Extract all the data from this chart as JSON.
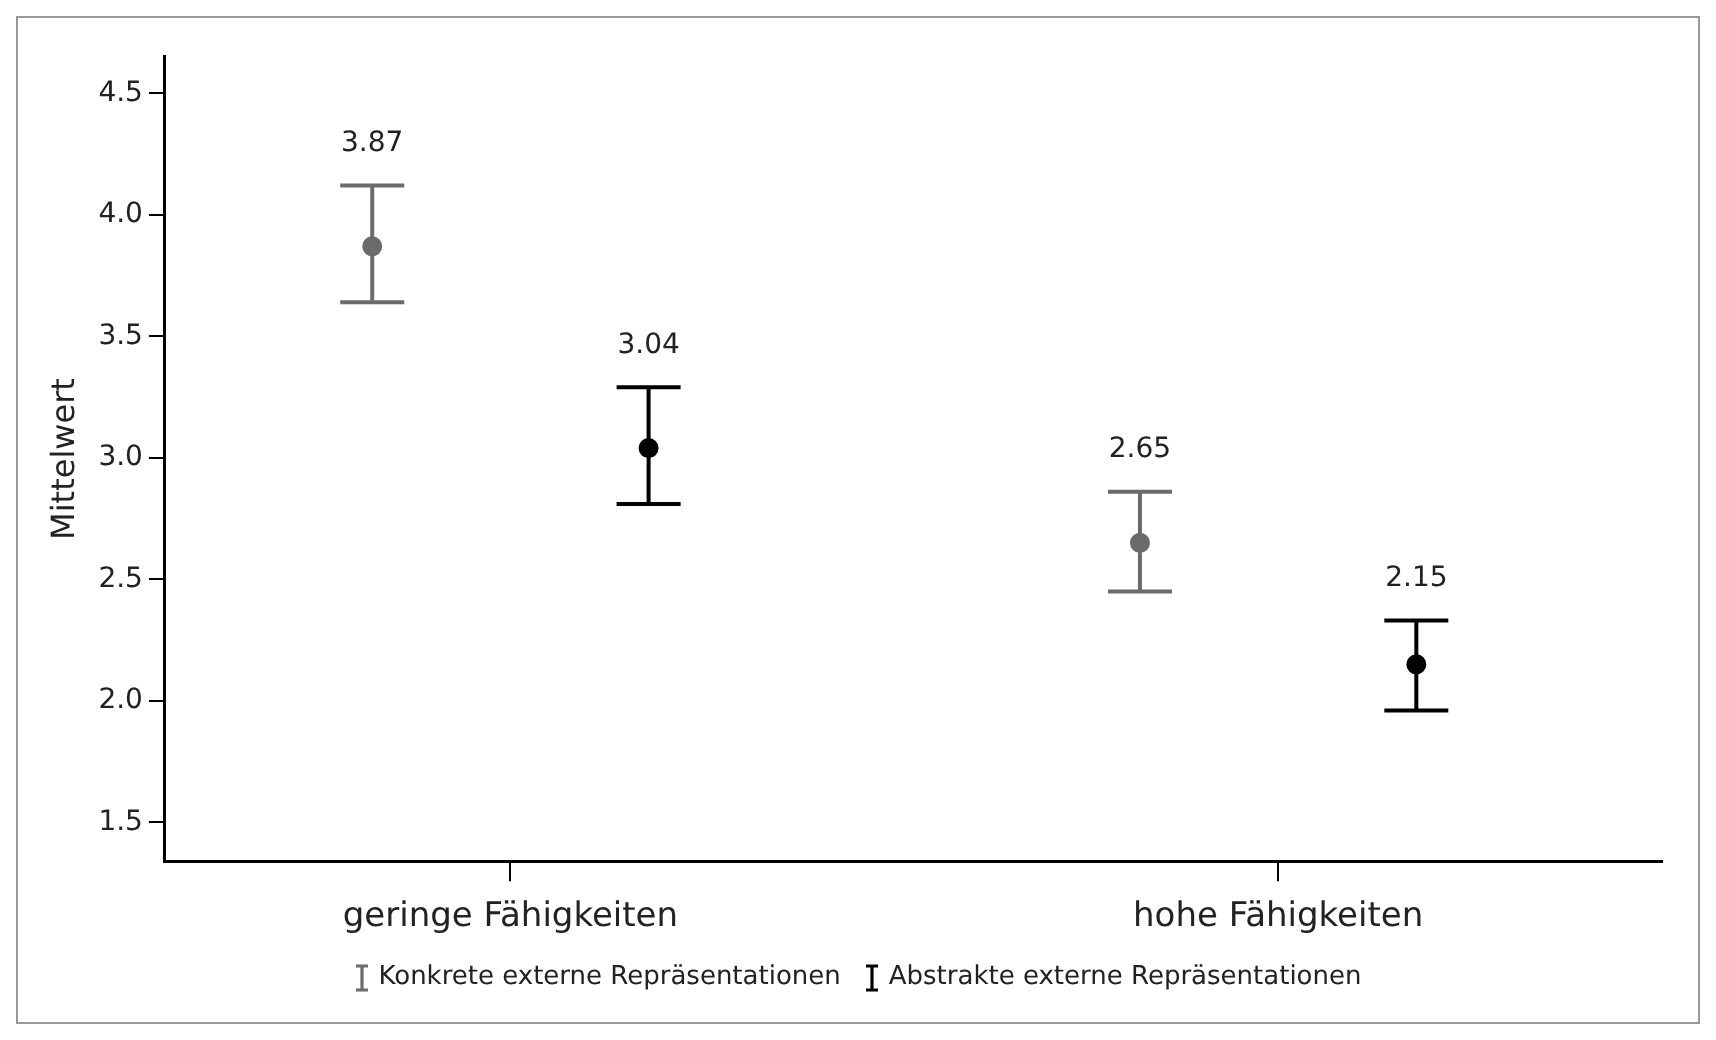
{
  "chart_data": {
    "type": "scatter",
    "ylabel": "Mittelwert",
    "categories": [
      "geringe Fähigkeiten",
      "hohe Fähigkeiten"
    ],
    "series": [
      {
        "name": "Konkrete externe Repräsentationen",
        "color": "#6b6b6b",
        "values": [
          3.87,
          2.65
        ],
        "errors": [
          [
            3.64,
            4.12
          ],
          [
            2.45,
            2.86
          ]
        ]
      },
      {
        "name": "Abstrakte externe Repräsentationen",
        "color": "#000000",
        "values": [
          3.04,
          2.15
        ],
        "errors": [
          [
            2.81,
            3.29
          ],
          [
            1.96,
            2.33
          ]
        ]
      }
    ],
    "ylim": [
      1.34,
      4.65
    ],
    "yticks": [
      1.5,
      {
        "value": 2,
        "label": "2.0"
      },
      2.5,
      {
        "value": 3,
        "label": "3.0"
      },
      3.5,
      {
        "value": 4,
        "label": "4.0"
      },
      4.5
    ],
    "grid": false,
    "legend": "bottom",
    "marker": "circle",
    "data_labels": true
  }
}
